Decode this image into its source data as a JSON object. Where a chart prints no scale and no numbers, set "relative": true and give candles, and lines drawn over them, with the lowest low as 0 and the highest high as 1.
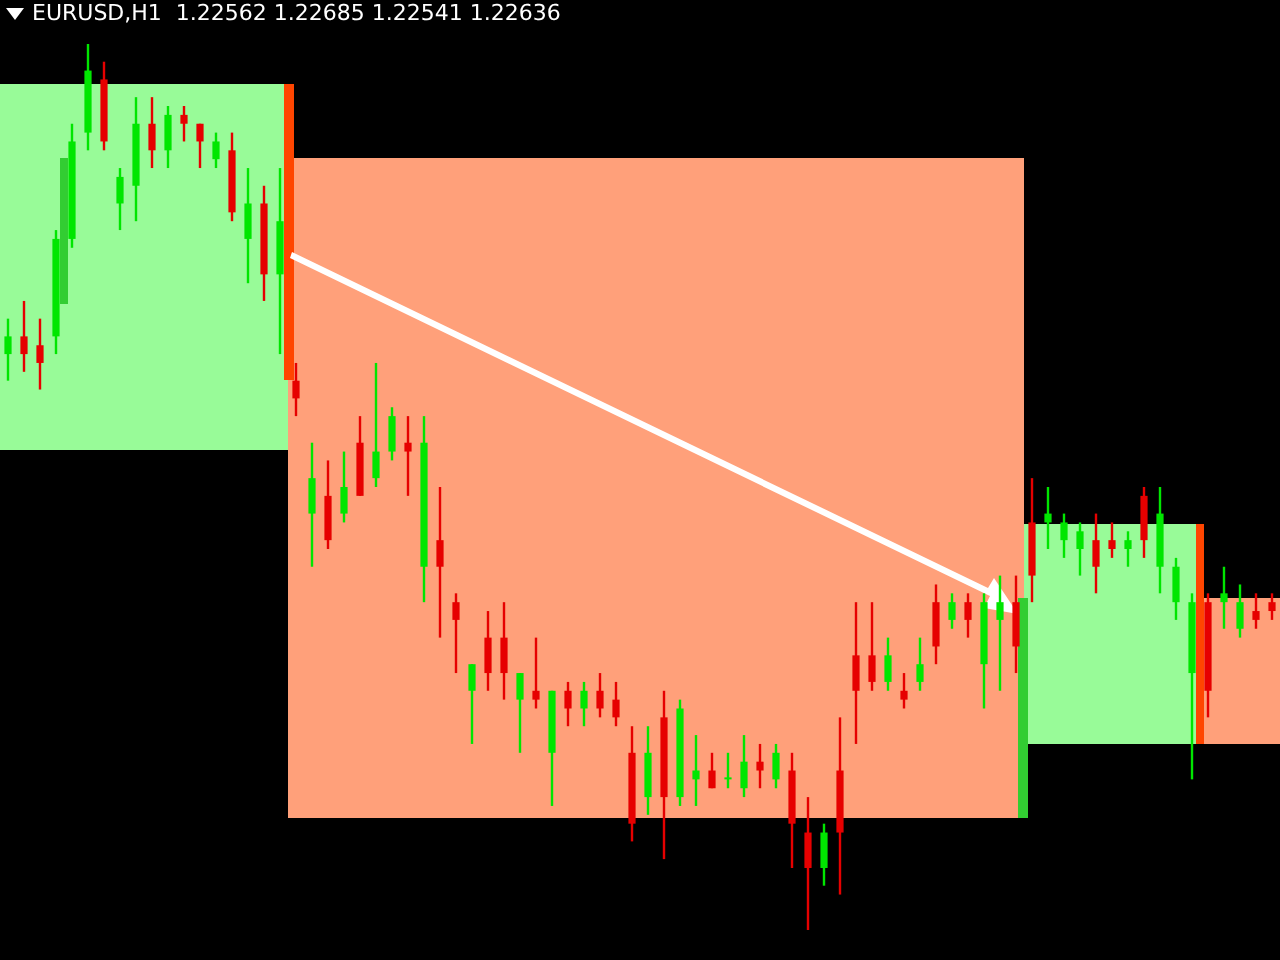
{
  "chart_data": {
    "type": "candlestick",
    "title": "EURUSD,H1  1.22562 1.22685 1.22541 1.22636",
    "relative": true,
    "tick_labels": false,
    "categories": [
      null,
      null,
      null,
      null,
      null,
      null,
      null,
      null,
      null,
      null,
      null,
      null,
      null,
      null,
      null,
      null,
      null,
      null,
      null,
      null,
      null,
      null,
      null,
      null,
      null,
      null,
      null,
      null,
      null,
      null,
      null,
      null,
      null,
      null,
      null,
      null,
      null,
      null,
      null,
      null,
      null,
      null,
      null,
      null,
      null,
      null,
      null,
      null,
      null,
      null,
      null,
      null,
      null,
      null,
      null,
      null,
      null,
      null,
      null,
      null,
      null,
      null,
      null,
      null,
      null,
      null,
      null,
      null,
      null,
      null,
      null,
      null,
      null,
      null,
      null,
      null,
      null,
      null,
      null,
      null
    ],
    "ohlc": [
      [
        0.65,
        0.69,
        0.62,
        0.67
      ],
      [
        0.67,
        0.71,
        0.63,
        0.65
      ],
      [
        0.66,
        0.69,
        0.61,
        0.64
      ],
      [
        0.67,
        0.79,
        0.65,
        0.78
      ],
      [
        0.78,
        0.91,
        0.77,
        0.89
      ],
      [
        0.9,
        1,
        0.88,
        0.97
      ],
      [
        0.96,
        0.98,
        0.88,
        0.89
      ],
      [
        0.82,
        0.86,
        0.79,
        0.85
      ],
      [
        0.84,
        0.94,
        0.8,
        0.91
      ],
      [
        0.91,
        0.94,
        0.86,
        0.88
      ],
      [
        0.88,
        0.93,
        0.86,
        0.92
      ],
      [
        0.92,
        0.93,
        0.89,
        0.91
      ],
      [
        0.91,
        0.91,
        0.86,
        0.89
      ],
      [
        0.87,
        0.9,
        0.86,
        0.89
      ],
      [
        0.88,
        0.9,
        0.8,
        0.81
      ],
      [
        0.78,
        0.86,
        0.73,
        0.82
      ],
      [
        0.82,
        0.84,
        0.71,
        0.74
      ],
      [
        0.74,
        0.86,
        0.65,
        0.8
      ],
      [
        0.62,
        0.64,
        0.58,
        0.6
      ],
      [
        0.47,
        0.55,
        0.41,
        0.51
      ],
      [
        0.49,
        0.53,
        0.43,
        0.44
      ],
      [
        0.47,
        0.54,
        0.46,
        0.5
      ],
      [
        0.55,
        0.58,
        0.49,
        0.49
      ],
      [
        0.51,
        0.64,
        0.5,
        0.54
      ],
      [
        0.54,
        0.59,
        0.53,
        0.58
      ],
      [
        0.55,
        0.58,
        0.49,
        0.54
      ],
      [
        0.41,
        0.58,
        0.37,
        0.55
      ],
      [
        0.44,
        0.5,
        0.33,
        0.41
      ],
      [
        0.37,
        0.38,
        0.29,
        0.35
      ],
      [
        0.27,
        0.3,
        0.21,
        0.3
      ],
      [
        0.33,
        0.36,
        0.27,
        0.29
      ],
      [
        0.33,
        0.37,
        0.26,
        0.29
      ],
      [
        0.26,
        0.29,
        0.2,
        0.29
      ],
      [
        0.27,
        0.33,
        0.25,
        0.26
      ],
      [
        0.2,
        0.27,
        0.14,
        0.27
      ],
      [
        0.27,
        0.28,
        0.23,
        0.25
      ],
      [
        0.25,
        0.28,
        0.23,
        0.27
      ],
      [
        0.27,
        0.29,
        0.24,
        0.25
      ],
      [
        0.26,
        0.28,
        0.23,
        0.24
      ],
      [
        0.2,
        0.23,
        0.1,
        0.12
      ],
      [
        0.15,
        0.23,
        0.13,
        0.2
      ],
      [
        0.24,
        0.27,
        0.08,
        0.15
      ],
      [
        0.15,
        0.26,
        0.14,
        0.25
      ],
      [
        0.17,
        0.22,
        0.14,
        0.18
      ],
      [
        0.18,
        0.2,
        0.16,
        0.16
      ],
      [
        0.17,
        0.2,
        0.16,
        0.17
      ],
      [
        0.16,
        0.22,
        0.15,
        0.19
      ],
      [
        0.19,
        0.21,
        0.16,
        0.18
      ],
      [
        0.17,
        0.21,
        0.16,
        0.2
      ],
      [
        0.18,
        0.2,
        0.07,
        0.12
      ],
      [
        0.11,
        0.15,
        0,
        0.07
      ],
      [
        0.07,
        0.12,
        0.05,
        0.11
      ],
      [
        0.18,
        0.24,
        0.04,
        0.11
      ],
      [
        0.31,
        0.37,
        0.21,
        0.27
      ],
      [
        0.31,
        0.37,
        0.27,
        0.28
      ],
      [
        0.28,
        0.33,
        0.27,
        0.31
      ],
      [
        0.27,
        0.29,
        0.25,
        0.26
      ],
      [
        0.28,
        0.33,
        0.27,
        0.3
      ],
      [
        0.37,
        0.39,
        0.3,
        0.32
      ],
      [
        0.35,
        0.38,
        0.34,
        0.37
      ],
      [
        0.37,
        0.38,
        0.33,
        0.35
      ],
      [
        0.3,
        0.38,
        0.25,
        0.37
      ],
      [
        0.35,
        0.4,
        0.27,
        0.37
      ],
      [
        0.37,
        0.4,
        0.29,
        0.32
      ],
      [
        0.46,
        0.51,
        0.37,
        0.4
      ],
      [
        0.46,
        0.5,
        0.43,
        0.47
      ],
      [
        0.44,
        0.47,
        0.42,
        0.46
      ],
      [
        0.43,
        0.46,
        0.4,
        0.45
      ],
      [
        0.44,
        0.47,
        0.38,
        0.41
      ],
      [
        0.44,
        0.46,
        0.42,
        0.43
      ],
      [
        0.43,
        0.45,
        0.41,
        0.44
      ],
      [
        0.49,
        0.5,
        0.42,
        0.44
      ],
      [
        0.41,
        0.5,
        0.38,
        0.47
      ],
      [
        0.37,
        0.42,
        0.35,
        0.41
      ],
      [
        0.29,
        0.38,
        0.17,
        0.37
      ],
      [
        0.37,
        0.38,
        0.24,
        0.27
      ],
      [
        0.37,
        0.41,
        0.34,
        0.38
      ],
      [
        0.34,
        0.39,
        0.33,
        0.37
      ],
      [
        0.36,
        0.38,
        0.34,
        0.35
      ],
      [
        0.37,
        0.38,
        0.35,
        0.36
      ]
    ],
    "colors": [
      "#00e600",
      "#e60000",
      "#e60000",
      "#00e600",
      "#00e600",
      "#00e600",
      "#e60000",
      "#00e600",
      "#00e600",
      "#e60000",
      "#00e600",
      "#e60000",
      "#e60000",
      "#00e600",
      "#e60000",
      "#00e600",
      "#e60000",
      "#00e600",
      "#e60000",
      "#00e600",
      "#e60000",
      "#00e600",
      "#e60000",
      "#00e600",
      "#00e600",
      "#e60000",
      "#00e600",
      "#e60000",
      "#e60000",
      "#00e600",
      "#e60000",
      "#e60000",
      "#00e600",
      "#e60000",
      "#00e600",
      "#e60000",
      "#00e600",
      "#e60000",
      "#e60000",
      "#e60000",
      "#00e600",
      "#e60000",
      "#00e600",
      "#00e600",
      "#e60000",
      "#00e600",
      "#00e600",
      "#e60000",
      "#00e600",
      "#e60000",
      "#e60000",
      "#00e600",
      "#e60000",
      "#e60000",
      "#e60000",
      "#00e600",
      "#e60000",
      "#00e600",
      "#e60000",
      "#00e600",
      "#e60000",
      "#00e600",
      "#00e600",
      "#e60000",
      "#e60000",
      "#00e600",
      "#00e600",
      "#00e600",
      "#e60000",
      "#e60000",
      "#00e600",
      "#e60000",
      "#00e600",
      "#00e600",
      "#00e600",
      "#e60000",
      "#00e600",
      "#00e600",
      "#e60000",
      "#e60000"
    ]
  }
}
